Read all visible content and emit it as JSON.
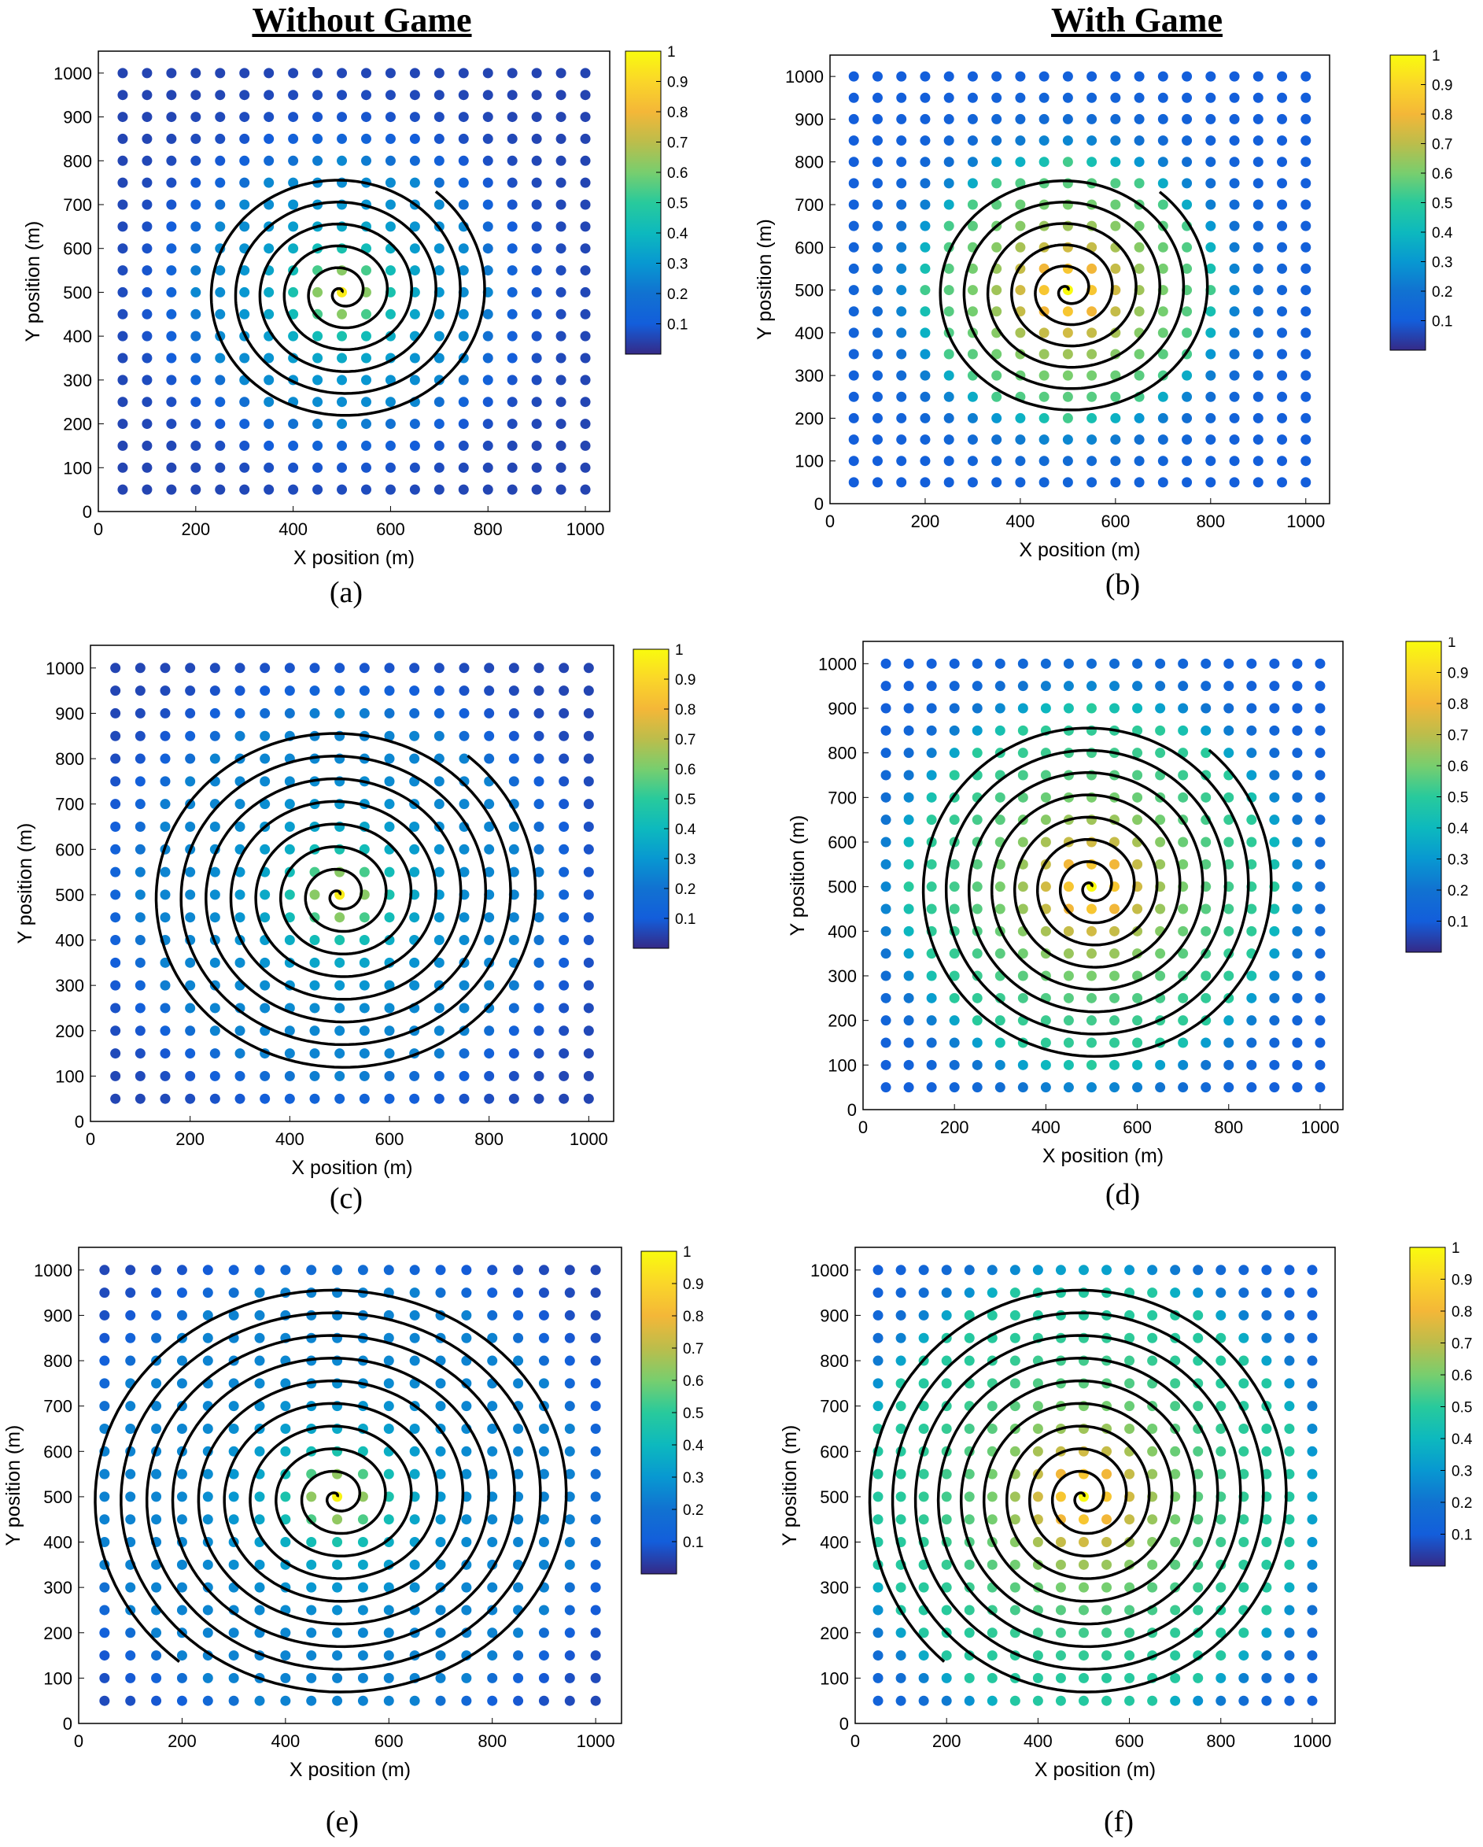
{
  "titles": {
    "left": "Without Game",
    "right": "With Game"
  },
  "colorbar": {
    "colormap": "parula",
    "range": [
      0,
      1
    ],
    "tick_values": [
      0.1,
      0.2,
      0.3,
      0.4,
      0.5,
      0.6,
      0.7,
      0.8,
      0.9,
      1
    ],
    "tick_labels": [
      "0.1",
      "0.2",
      "0.3",
      "0.4",
      "0.5",
      "0.6",
      "0.7",
      "0.8",
      "0.9",
      "1"
    ]
  },
  "colors": {
    "axis": "#000000",
    "spiral": "#000000",
    "background": "#ffffff"
  },
  "chart_data": [
    {
      "id": "a",
      "type": "scatter",
      "label": "(a)",
      "group": "Without Game",
      "xlabel": "X position (m)",
      "ylabel": "Y position (m)",
      "xlim": [
        0,
        1050
      ],
      "ylim": [
        0,
        1050
      ],
      "xticks": [
        0,
        200,
        400,
        600,
        800,
        1000
      ],
      "xtick_labels": [
        "0",
        "200",
        "400",
        "600",
        "800",
        "1000"
      ],
      "yticks": [
        0,
        100,
        200,
        300,
        400,
        500,
        600,
        700,
        800,
        900,
        1000
      ],
      "ytick_labels": [
        "0",
        "100",
        "200",
        "300",
        "400",
        "500",
        "600",
        "700",
        "800",
        "900",
        "1000"
      ],
      "grid_points": {
        "x_start": 50,
        "x_end": 1000,
        "y_start": 50,
        "y_end": 1000,
        "step": 50,
        "count_per_axis": 20
      },
      "value_field": {
        "center": [
          500,
          500
        ],
        "peak": 0.96,
        "halo_base": 0.24,
        "halo_radius": 300,
        "inner_decay": 80,
        "outer_value": 0.05
      },
      "spiral": {
        "center": [
          500,
          500
        ],
        "turns": 6,
        "outer_radius": 300,
        "angle_offset_deg": 50
      }
    },
    {
      "id": "b",
      "type": "scatter",
      "label": "(b)",
      "group": "With Game",
      "xlabel": "X position (m)",
      "ylabel": "Y position (m)",
      "xlim": [
        0,
        1050
      ],
      "ylim": [
        0,
        1050
      ],
      "xticks": [
        0,
        200,
        400,
        600,
        800,
        1000
      ],
      "xtick_labels": [
        "0",
        "200",
        "400",
        "600",
        "800",
        "1000"
      ],
      "yticks": [
        0,
        100,
        200,
        300,
        400,
        500,
        600,
        700,
        800,
        900,
        1000
      ],
      "ytick_labels": [
        "0",
        "100",
        "200",
        "300",
        "400",
        "500",
        "600",
        "700",
        "800",
        "900",
        "1000"
      ],
      "grid_points": {
        "x_start": 50,
        "x_end": 1000,
        "y_start": 50,
        "y_end": 1000,
        "step": 50,
        "count_per_axis": 20
      },
      "value_field": {
        "center": [
          500,
          500
        ],
        "peak": 1.0,
        "halo_base": 0.46,
        "halo_radius": 300,
        "inner_decay": 150,
        "outer_value": 0.1
      },
      "spiral": {
        "center": [
          500,
          500
        ],
        "turns": 6,
        "outer_radius": 300,
        "angle_offset_deg": 50
      }
    },
    {
      "id": "c",
      "type": "scatter",
      "label": "(c)",
      "group": "Without Game",
      "xlabel": "X position (m)",
      "ylabel": "Y position (m)",
      "xlim": [
        0,
        1050
      ],
      "ylim": [
        0,
        1050
      ],
      "xticks": [
        0,
        200,
        400,
        600,
        800,
        1000
      ],
      "xtick_labels": [
        "0",
        "200",
        "400",
        "600",
        "800",
        "1000"
      ],
      "yticks": [
        0,
        100,
        200,
        300,
        400,
        500,
        600,
        700,
        800,
        900,
        1000
      ],
      "ytick_labels": [
        "0",
        "100",
        "200",
        "300",
        "400",
        "500",
        "600",
        "700",
        "800",
        "900",
        "1000"
      ],
      "grid_points": {
        "x_start": 50,
        "x_end": 1000,
        "y_start": 50,
        "y_end": 1000,
        "step": 50,
        "count_per_axis": 20
      },
      "value_field": {
        "center": [
          500,
          500
        ],
        "peak": 0.96,
        "halo_base": 0.24,
        "halo_radius": 400,
        "inner_decay": 80,
        "outer_value": 0.05
      },
      "spiral": {
        "center": [
          500,
          500
        ],
        "turns": 8,
        "outer_radius": 400,
        "angle_offset_deg": 50
      }
    },
    {
      "id": "d",
      "type": "scatter",
      "label": "(d)",
      "group": "With Game",
      "xlabel": "X position (m)",
      "ylabel": "Y position (m)",
      "xlim": [
        0,
        1050
      ],
      "ylim": [
        0,
        1050
      ],
      "xticks": [
        0,
        200,
        400,
        600,
        800,
        1000
      ],
      "xtick_labels": [
        "0",
        "200",
        "400",
        "600",
        "800",
        "1000"
      ],
      "yticks": [
        0,
        100,
        200,
        300,
        400,
        500,
        600,
        700,
        800,
        900,
        1000
      ],
      "ytick_labels": [
        "0",
        "100",
        "200",
        "300",
        "400",
        "500",
        "600",
        "700",
        "800",
        "900",
        "1000"
      ],
      "grid_points": {
        "x_start": 50,
        "x_end": 1000,
        "y_start": 50,
        "y_end": 1000,
        "step": 50,
        "count_per_axis": 20
      },
      "value_field": {
        "center": [
          500,
          500
        ],
        "peak": 1.0,
        "halo_base": 0.46,
        "halo_radius": 400,
        "inner_decay": 150,
        "outer_value": 0.1
      },
      "spiral": {
        "center": [
          500,
          500
        ],
        "turns": 8,
        "outer_radius": 400,
        "angle_offset_deg": 50
      }
    },
    {
      "id": "e",
      "type": "scatter",
      "label": "(e)",
      "group": "Without Game",
      "xlabel": "X position (m)",
      "ylabel": "Y position (m)",
      "xlim": [
        0,
        1050
      ],
      "ylim": [
        0,
        1050
      ],
      "xticks": [
        0,
        200,
        400,
        600,
        800,
        1000
      ],
      "xtick_labels": [
        "0",
        "200",
        "400",
        "600",
        "800",
        "1000"
      ],
      "yticks": [
        0,
        100,
        200,
        300,
        400,
        500,
        600,
        700,
        800,
        900,
        1000
      ],
      "ytick_labels": [
        "0",
        "100",
        "200",
        "300",
        "400",
        "500",
        "600",
        "700",
        "800",
        "900",
        "1000"
      ],
      "grid_points": {
        "x_start": 50,
        "x_end": 1000,
        "y_start": 50,
        "y_end": 1000,
        "step": 50,
        "count_per_axis": 20
      },
      "value_field": {
        "center": [
          500,
          500
        ],
        "peak": 0.98,
        "halo_base": 0.24,
        "halo_radius": 475,
        "inner_decay": 80,
        "outer_value": 0.05
      },
      "spiral": {
        "center": [
          500,
          500
        ],
        "turns": 9.5,
        "outer_radius": 475,
        "angle_offset_deg": 50
      }
    },
    {
      "id": "f",
      "type": "scatter",
      "label": "(f)",
      "group": "With Game",
      "xlabel": "X position (m)",
      "ylabel": "Y position (m)",
      "xlim": [
        0,
        1050
      ],
      "ylim": [
        0,
        1050
      ],
      "xticks": [
        0,
        200,
        400,
        600,
        800,
        1000
      ],
      "xtick_labels": [
        "0",
        "200",
        "400",
        "600",
        "800",
        "1000"
      ],
      "yticks": [
        0,
        100,
        200,
        300,
        400,
        500,
        600,
        700,
        800,
        900,
        1000
      ],
      "ytick_labels": [
        "0",
        "100",
        "200",
        "300",
        "400",
        "500",
        "600",
        "700",
        "800",
        "900",
        "1000"
      ],
      "grid_points": {
        "x_start": 50,
        "x_end": 1000,
        "y_start": 50,
        "y_end": 1000,
        "step": 50,
        "count_per_axis": 20
      },
      "value_field": {
        "center": [
          500,
          500
        ],
        "peak": 1.0,
        "halo_base": 0.46,
        "halo_radius": 475,
        "inner_decay": 150,
        "outer_value": 0.1
      },
      "spiral": {
        "center": [
          500,
          500
        ],
        "turns": 9.5,
        "outer_radius": 475,
        "angle_offset_deg": 50
      }
    }
  ]
}
